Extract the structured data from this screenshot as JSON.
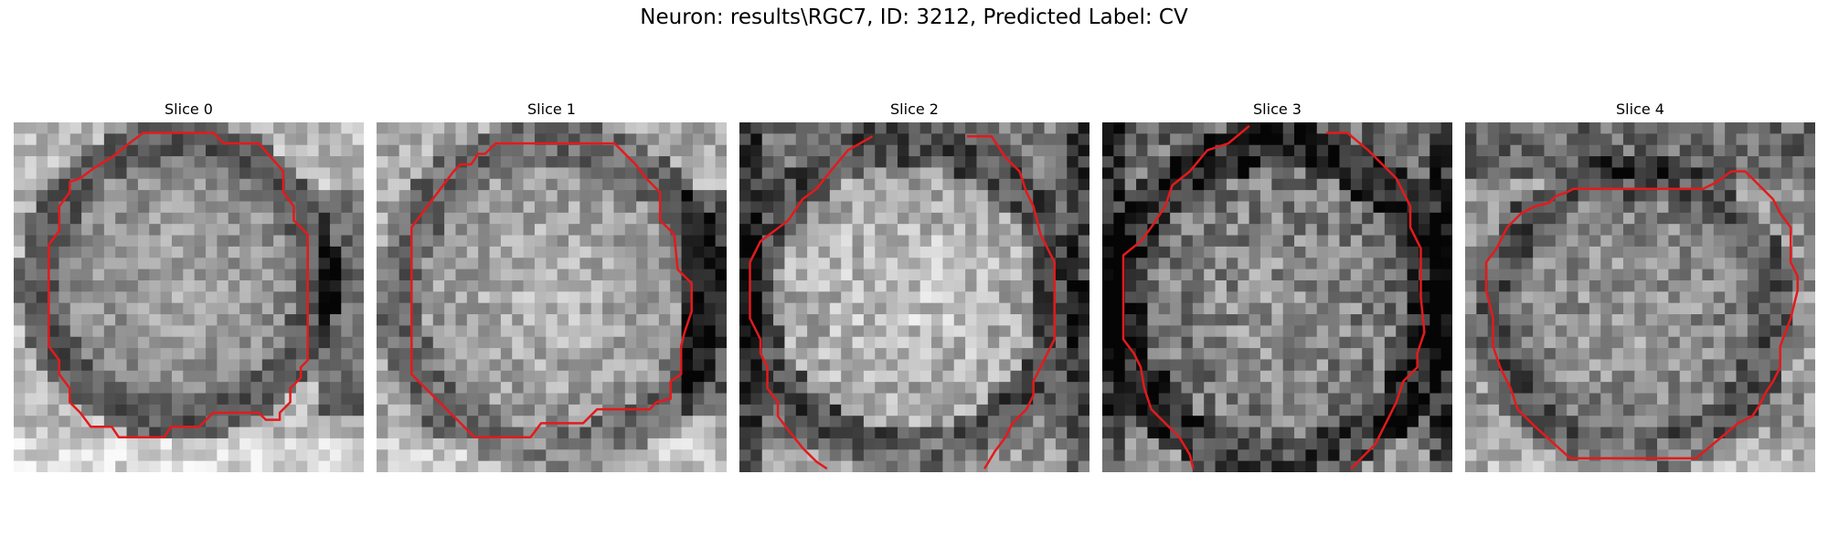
{
  "figure": {
    "title": "Neuron: results\\RGC7, ID: 3212, Predicted Label: CV"
  },
  "panels": [
    {
      "title": "Slice 0"
    },
    {
      "title": "Slice 1"
    },
    {
      "title": "Slice 2"
    },
    {
      "title": "Slice 3"
    },
    {
      "title": "Slice 4"
    }
  ],
  "colors": {
    "contour": "#e31a1c",
    "background": "#ffffff"
  }
}
